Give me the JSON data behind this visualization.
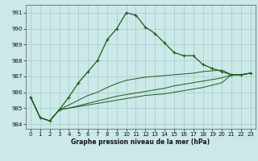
{
  "title": "Graphe pression niveau de la mer (hPa)",
  "bg_color": "#cce8e8",
  "grid_color": "#aad0d0",
  "line_color": "#1a5c1a",
  "xlim": [
    -0.5,
    23.5
  ],
  "ylim": [
    983.7,
    991.5
  ],
  "yticks": [
    984,
    985,
    986,
    987,
    988,
    989,
    990,
    991
  ],
  "xticks": [
    0,
    1,
    2,
    3,
    4,
    5,
    6,
    7,
    8,
    9,
    10,
    11,
    12,
    13,
    14,
    15,
    16,
    17,
    18,
    19,
    20,
    21,
    22,
    23
  ],
  "series": [
    [
      985.7,
      984.4,
      984.2,
      984.9,
      985.7,
      986.6,
      987.3,
      988.0,
      989.3,
      990.0,
      991.0,
      990.85,
      990.1,
      989.7,
      989.1,
      988.5,
      988.3,
      988.3,
      987.75,
      987.5,
      987.3,
      987.1,
      987.1,
      987.2
    ],
    [
      985.7,
      984.4,
      984.2,
      984.9,
      985.2,
      985.5,
      985.8,
      986.0,
      986.3,
      986.55,
      986.75,
      986.85,
      986.95,
      987.0,
      987.05,
      987.1,
      987.15,
      987.2,
      987.3,
      987.35,
      987.4,
      987.1,
      987.1,
      987.2
    ],
    [
      985.7,
      984.4,
      984.2,
      984.9,
      985.0,
      985.15,
      985.3,
      985.45,
      985.6,
      985.75,
      985.85,
      985.95,
      986.05,
      986.15,
      986.25,
      986.4,
      986.5,
      986.6,
      986.7,
      986.8,
      986.9,
      987.1,
      987.1,
      987.2
    ],
    [
      985.7,
      984.4,
      984.2,
      984.9,
      985.0,
      985.1,
      985.2,
      985.3,
      985.4,
      985.5,
      985.6,
      985.7,
      985.8,
      985.85,
      985.9,
      986.0,
      986.1,
      986.2,
      986.3,
      986.45,
      986.6,
      987.1,
      987.1,
      987.2
    ]
  ]
}
